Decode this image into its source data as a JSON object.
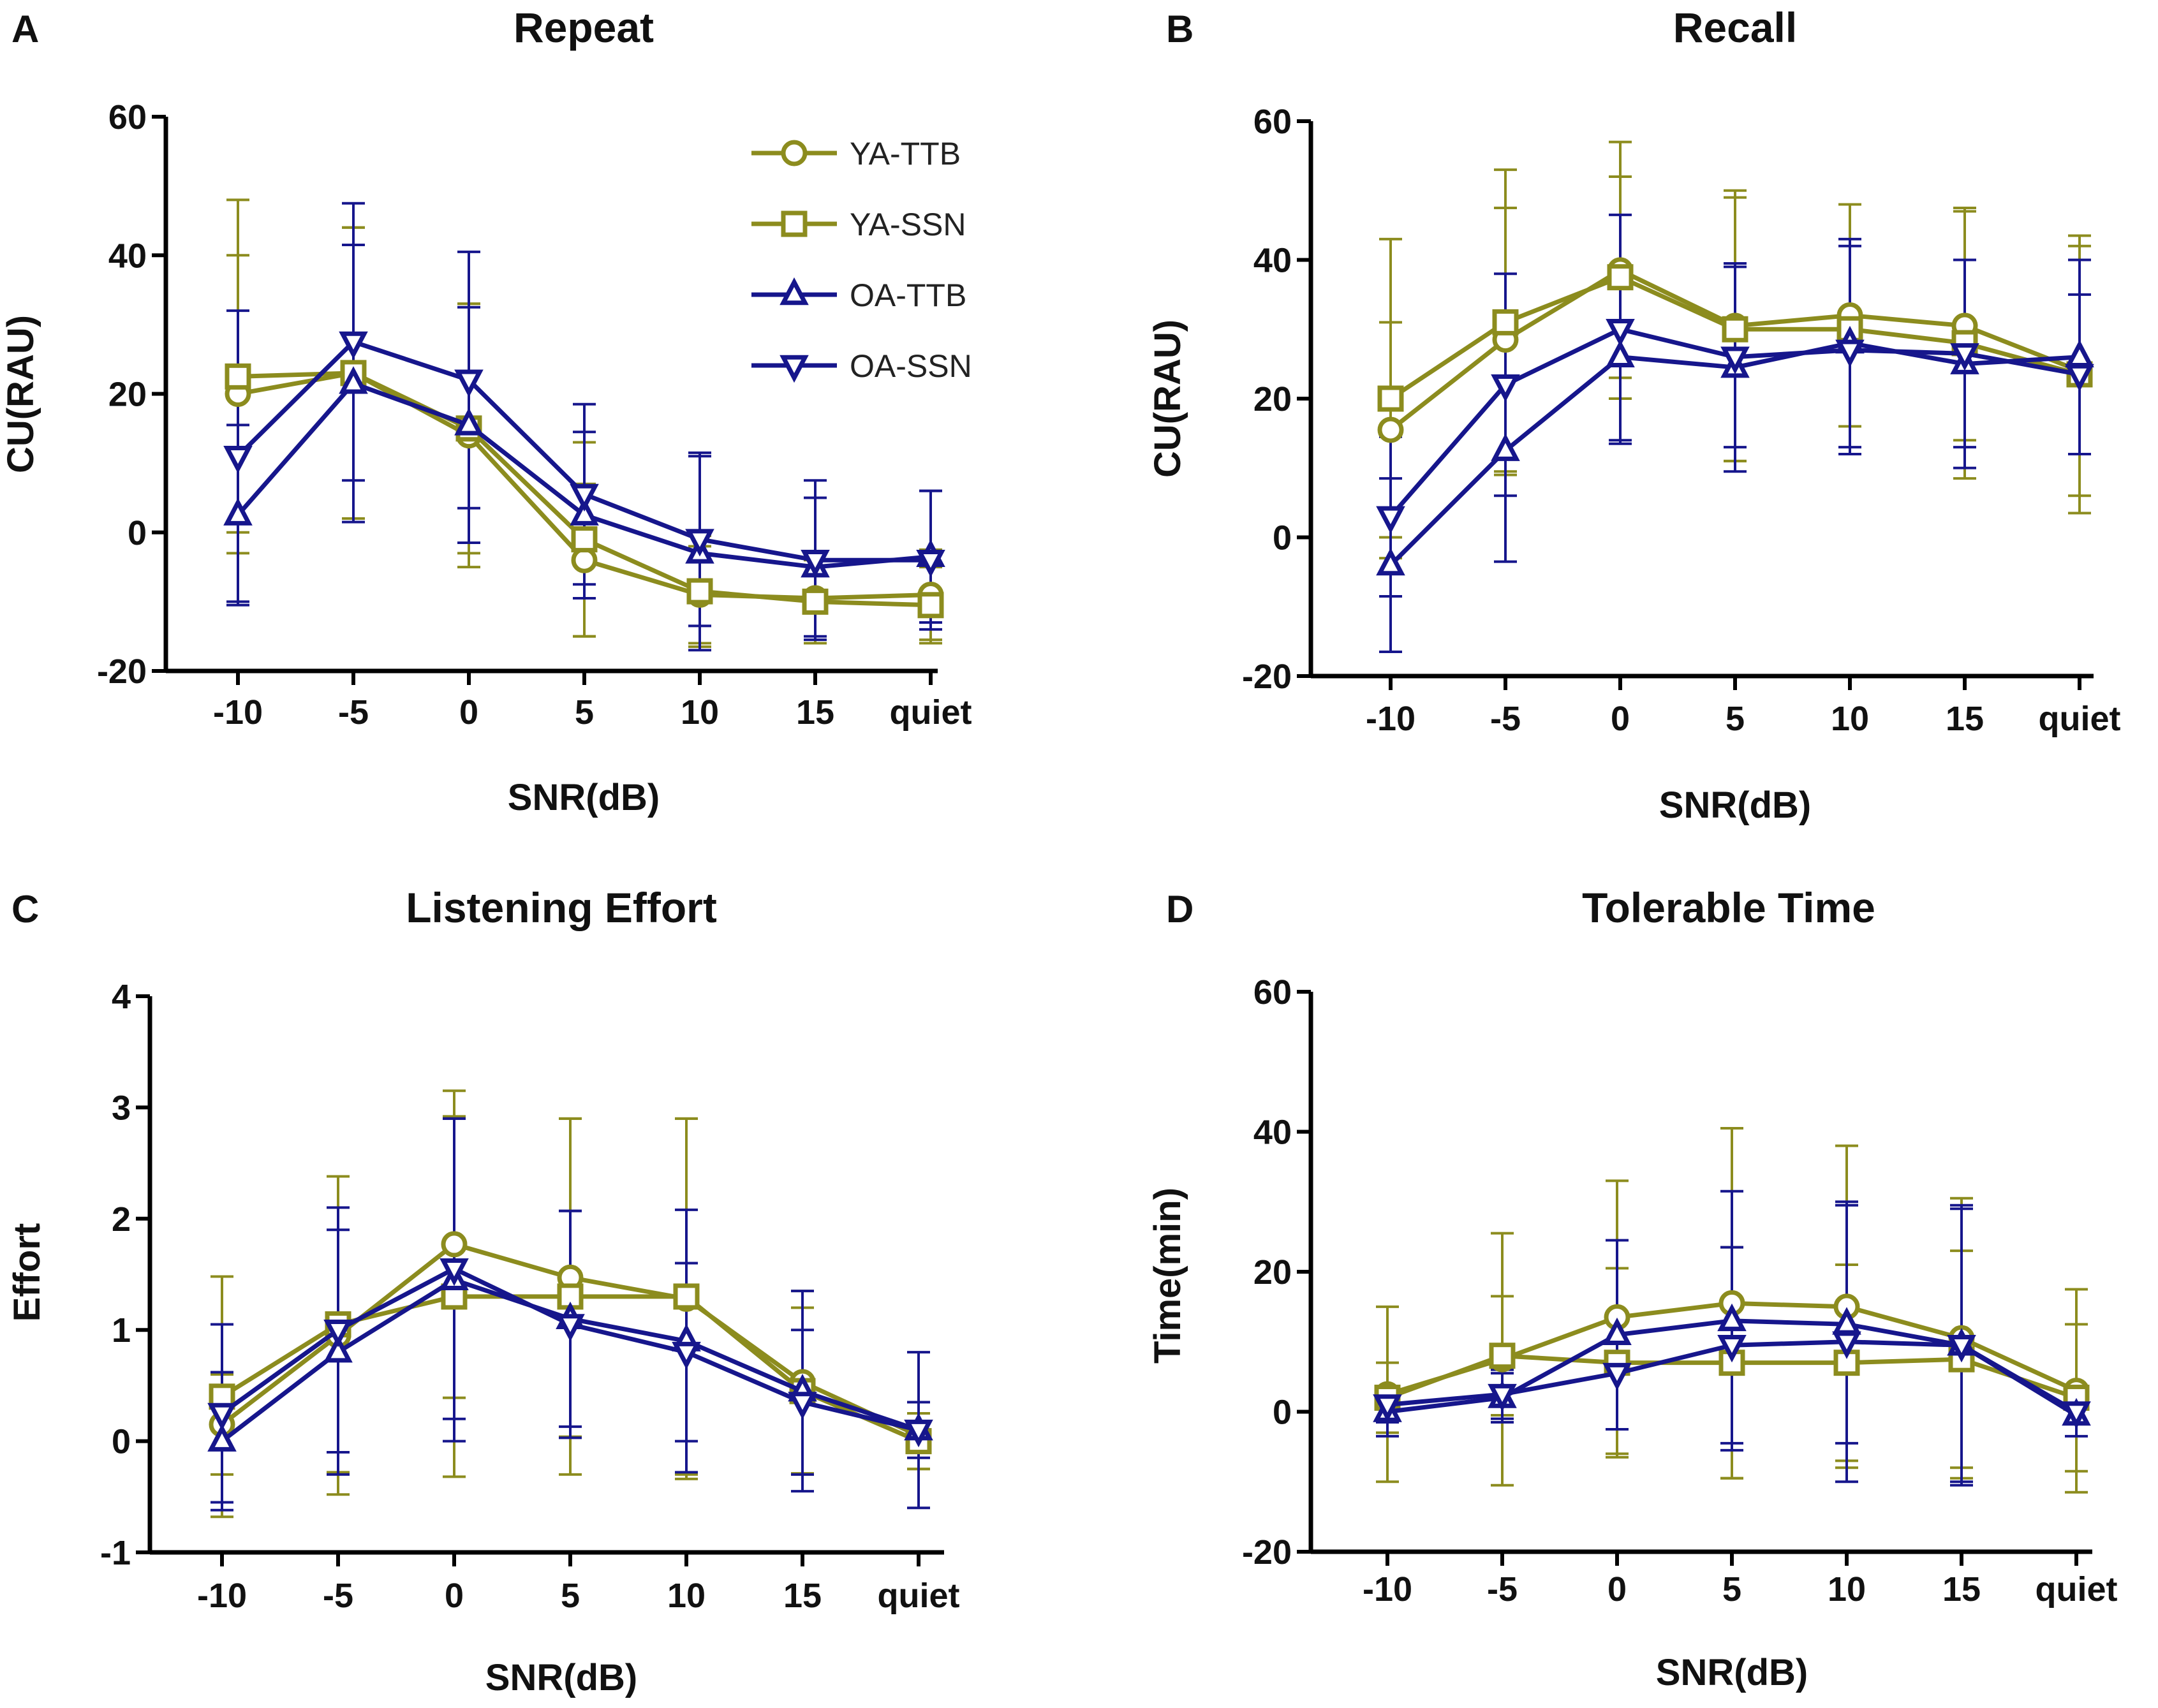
{
  "colors": {
    "ya": "#8c8c1e",
    "oa": "#16168c",
    "axis": "#000000"
  },
  "legend": [
    {
      "name": "YA-TTB",
      "color": "#8c8c1e",
      "marker": "circle"
    },
    {
      "name": "YA-SSN",
      "color": "#8c8c1e",
      "marker": "square"
    },
    {
      "name": "OA-TTB",
      "color": "#16168c",
      "marker": "triangle-up"
    },
    {
      "name": "OA-SSN",
      "color": "#16168c",
      "marker": "triangle-down"
    }
  ],
  "chart_data": [
    {
      "panel": "A",
      "title": "Repeat",
      "type": "line",
      "xlabel": "SNR(dB)",
      "ylabel": "CU(RAU)",
      "categories": [
        "-10",
        "-5",
        "0",
        "5",
        "10",
        "15",
        "quiet"
      ],
      "ylim": [
        -20,
        60
      ],
      "yticks": [
        "-20",
        "0",
        "20",
        "40",
        "60"
      ],
      "series": [
        {
          "name": "YA-TTB",
          "values": [
            20,
            23,
            14,
            -4,
            -9,
            -9.5,
            -9
          ],
          "err": [
            20,
            21,
            19,
            11,
            7,
            6.5,
            6.5
          ]
        },
        {
          "name": "YA-SSN",
          "values": [
            22.5,
            23,
            15,
            -1,
            -8.5,
            -10,
            -10.5
          ],
          "err": [
            25.5,
            21,
            18,
            14,
            8,
            6,
            5.5
          ]
        },
        {
          "name": "OA-TTB",
          "values": [
            2.5,
            21.5,
            15.5,
            2.5,
            -3,
            -5,
            -3.5
          ],
          "err": [
            13,
            20,
            17,
            12,
            14,
            10,
            9.5
          ]
        },
        {
          "name": "OA-SSN",
          "values": [
            11,
            27.5,
            22,
            5.5,
            -1,
            -4,
            -4
          ],
          "err": [
            21,
            20,
            18.5,
            13,
            12.5,
            11.5,
            10
          ]
        }
      ]
    },
    {
      "panel": "B",
      "title": "Recall",
      "type": "line",
      "xlabel": "SNR(dB)",
      "ylabel": "CU(RAU)",
      "categories": [
        "-10",
        "-5",
        "0",
        "5",
        "10",
        "15",
        "quiet"
      ],
      "ylim": [
        -20,
        60
      ],
      "yticks": [
        "-20",
        "0",
        "20",
        "40",
        "60"
      ],
      "series": [
        {
          "name": "YA-TTB",
          "values": [
            15.5,
            28.5,
            38.5,
            30.5,
            32,
            30.5,
            24
          ],
          "err": [
            15.5,
            19,
            18.5,
            19.5,
            16,
            16.5,
            18
          ]
        },
        {
          "name": "YA-SSN",
          "values": [
            20,
            31,
            37.5,
            30,
            30,
            28,
            23.5
          ],
          "err": [
            23,
            22,
            14.5,
            19,
            18,
            19.5,
            20
          ]
        },
        {
          "name": "OA-TTB",
          "values": [
            -4,
            12.5,
            26,
            24.5,
            28,
            25,
            26
          ],
          "err": [
            12.5,
            16,
            12,
            15,
            15,
            15,
            14
          ]
        },
        {
          "name": "OA-SSN",
          "values": [
            3,
            22,
            30,
            26,
            27,
            26.5,
            23.5
          ],
          "err": [
            11.5,
            16,
            16.5,
            13,
            15,
            13.5,
            11.5
          ]
        }
      ]
    },
    {
      "panel": "C",
      "title": "Listening Effort",
      "type": "line",
      "xlabel": "SNR(dB)",
      "ylabel": "Effort",
      "categories": [
        "-10",
        "-5",
        "0",
        "5",
        "10",
        "15",
        "quiet"
      ],
      "ylim": [
        -1,
        4
      ],
      "yticks": [
        "-1",
        "0",
        "1",
        "2",
        "3",
        "4"
      ],
      "series": [
        {
          "name": "YA-TTB",
          "values": [
            0.15,
            0.95,
            1.77,
            1.47,
            1.28,
            0.53,
            0.05
          ],
          "err": [
            0.45,
            1.43,
            1.38,
            1.43,
            1.62,
            0.82,
            0.3
          ]
        },
        {
          "name": "YA-SSN",
          "values": [
            0.4,
            1.05,
            1.3,
            1.3,
            1.3,
            0.45,
            0.0
          ],
          "err": [
            1.08,
            1.33,
            1.62,
            1.6,
            1.6,
            0.75,
            0.25
          ]
        },
        {
          "name": "OA-TTB",
          "values": [
            0.0,
            0.8,
            1.45,
            1.1,
            0.9,
            0.45,
            0.1
          ],
          "err": [
            0.62,
            1.1,
            1.45,
            0.97,
            1.18,
            0.9,
            0.7
          ]
        },
        {
          "name": "OA-SSN",
          "values": [
            0.25,
            1.0,
            1.55,
            1.05,
            0.8,
            0.35,
            0.1
          ],
          "err": [
            0.8,
            1.1,
            1.35,
            1.02,
            0.8,
            0.65,
            0.25
          ]
        }
      ]
    },
    {
      "panel": "D",
      "title": "Tolerable Time",
      "type": "line",
      "xlabel": "SNR(dB)",
      "ylabel": "Time(min)",
      "categories": [
        "-10",
        "-5",
        "0",
        "5",
        "10",
        "15",
        "quiet"
      ],
      "ylim": [
        -20,
        60
      ],
      "yticks": [
        "-20",
        "0",
        "20",
        "40",
        "60"
      ],
      "series": [
        {
          "name": "YA-TTB",
          "values": [
            2.5,
            7.5,
            13.5,
            15.5,
            15,
            10.5,
            3
          ],
          "err": [
            12.5,
            18,
            19.5,
            25,
            23,
            20,
            14.5
          ]
        },
        {
          "name": "YA-SSN",
          "values": [
            2,
            8,
            7,
            7,
            7,
            7.5,
            2
          ],
          "err": [
            5,
            8.5,
            13.5,
            16.5,
            14,
            15.5,
            10.5
          ]
        },
        {
          "name": "OA-TTB",
          "values": [
            0,
            2,
            11,
            13,
            12.5,
            9.5,
            -0.5
          ],
          "err": [
            3.5,
            3.5,
            13.5,
            18.5,
            17,
            20,
            3
          ]
        },
        {
          "name": "OA-SSN",
          "values": [
            1,
            2.5,
            5.5,
            9.5,
            10,
            9.5,
            0
          ],
          "err": [
            2.5,
            3.5,
            8,
            14,
            20,
            19.5,
            1.5
          ]
        }
      ]
    }
  ]
}
